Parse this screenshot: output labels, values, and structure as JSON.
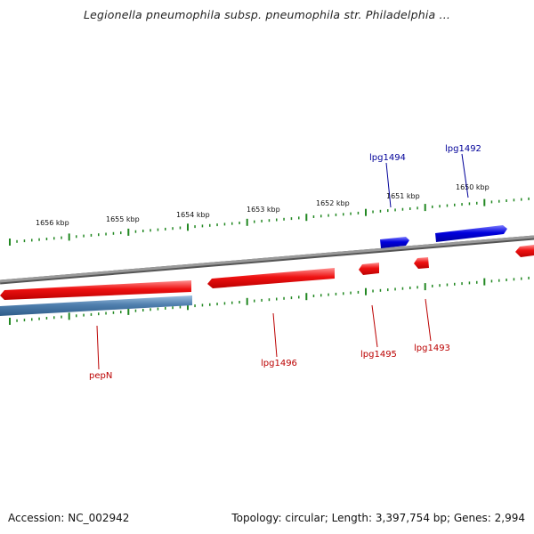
{
  "title": "Legionella pneumophila subsp. pneumophila str. Philadelphia ...",
  "footer": {
    "accession": "Accession: NC_002942",
    "summary": "Topology: circular; Length: 3,397,754 bp; Genes: 2,994"
  },
  "colors": {
    "forward_gene": "#0000dd",
    "reverse_gene": "#ee1111",
    "selected_gene": "#4f7fae",
    "backbone": "#888888",
    "ticks": "#228822",
    "forward_label": "#000099",
    "reverse_label": "#bb0000"
  },
  "kbp_labels": [
    "1656 kbp",
    "1655 kbp",
    "1654 kbp",
    "1653 kbp",
    "1652 kbp",
    "1651 kbp",
    "1650 kbp"
  ],
  "genes_labeled": {
    "forward": [
      "lpg1494",
      "lpg1492"
    ],
    "reverse": [
      "pepN",
      "lpg1496",
      "lpg1495",
      "lpg1493"
    ]
  }
}
